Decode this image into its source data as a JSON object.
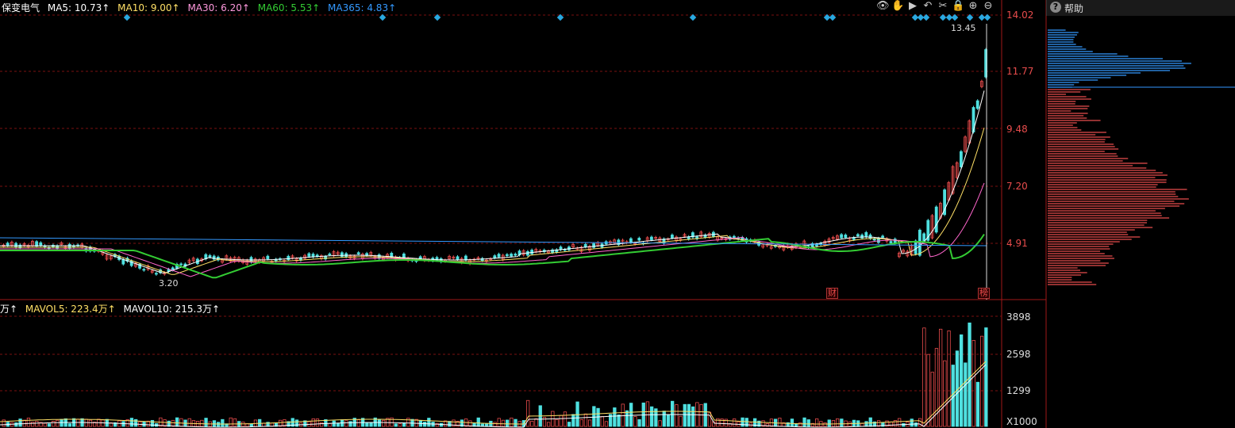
{
  "stock": {
    "name": "保变电气",
    "ma5": "MA5: 10.73↑",
    "ma10": "MA10: 9.00↑",
    "ma30": "MA30: 6.20↑",
    "ma60": "MA60: 5.53↑",
    "ma365": "MA365: 4.83↑"
  },
  "volume_legend": {
    "unit": "万↑",
    "mavol5": "MAVOL5: 223.4万↑",
    "mavol10": "MAVOL10: 215.3万↑"
  },
  "price_axis": [
    "14.02",
    "11.77",
    "9.48",
    "7.20",
    "4.91"
  ],
  "volume_axis": [
    "3898",
    "2598",
    "1299",
    "X1000"
  ],
  "annotations": {
    "high_label": "13.45",
    "low_label": "3.20",
    "fin_tag": "财",
    "list_tag": "榜"
  },
  "help_panel": {
    "label": "帮助"
  },
  "toolbar_icons": [
    "eye-icon",
    "hand-icon",
    "play-icon",
    "undo-icon",
    "scissors-icon",
    "lock-icon",
    "zoom-in-icon",
    "zoom-out-icon"
  ],
  "colors": {
    "up": "#e84c4c",
    "down": "#4fe0e0",
    "ma5": "#ffffff",
    "ma10": "#ffe066",
    "ma30": "#ff66cc",
    "ma60": "#33cc33",
    "ma365": "#3399ff",
    "grid": "#7a1010"
  }
}
